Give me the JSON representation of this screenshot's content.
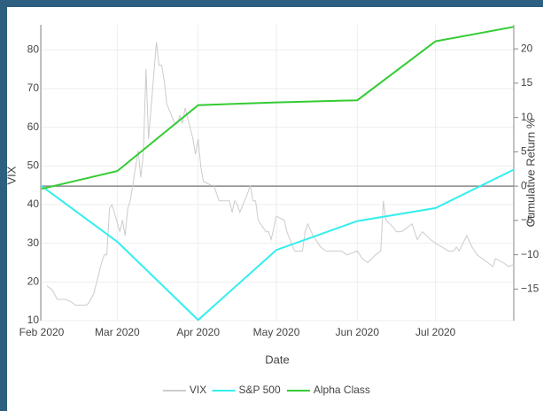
{
  "chart_data": {
    "type": "line",
    "xlabel": "Date",
    "ylabel": "VIX",
    "y2label": "Cumulative Return %",
    "xlim": [
      "2020-02-01",
      "2020-07-31"
    ],
    "xticks": [
      {
        "value": "2020-02-01",
        "label": "Feb 2020"
      },
      {
        "value": "2020-03-01",
        "label": "Mar 2020"
      },
      {
        "value": "2020-04-01",
        "label": "Apr 2020"
      },
      {
        "value": "2020-05-01",
        "label": "May 2020"
      },
      {
        "value": "2020-06-01",
        "label": "Jun 2020"
      },
      {
        "value": "2020-07-01",
        "label": "Jul 2020"
      }
    ],
    "ylim": [
      10,
      86.5
    ],
    "yticks": [
      10,
      20,
      30,
      40,
      50,
      60,
      70,
      80
    ],
    "y2lim": [
      -19.6,
      23.5
    ],
    "y2ticks": [
      {
        "value": -15,
        "label": "−15"
      },
      {
        "value": -10,
        "label": "−10"
      },
      {
        "value": -5,
        "label": "−5"
      },
      0,
      5,
      10,
      15,
      20
    ],
    "grid": true,
    "legend": "bottom",
    "series": [
      {
        "name": "VIX",
        "color": "#cccccc",
        "axis": "y",
        "x": [
          "2020-02-03",
          "2020-02-05",
          "2020-02-07",
          "2020-02-10",
          "2020-02-12",
          "2020-02-14",
          "2020-02-18",
          "2020-02-19",
          "2020-02-21",
          "2020-02-24",
          "2020-02-25",
          "2020-02-26",
          "2020-02-27",
          "2020-02-28",
          "2020-03-02",
          "2020-03-03",
          "2020-03-04",
          "2020-03-05",
          "2020-03-06",
          "2020-03-09",
          "2020-03-10",
          "2020-03-11",
          "2020-03-12",
          "2020-03-13",
          "2020-03-16",
          "2020-03-17",
          "2020-03-18",
          "2020-03-19",
          "2020-03-20",
          "2020-03-23",
          "2020-03-24",
          "2020-03-25",
          "2020-03-26",
          "2020-03-27",
          "2020-03-30",
          "2020-03-31",
          "2020-04-01",
          "2020-04-02",
          "2020-04-03",
          "2020-04-06",
          "2020-04-07",
          "2020-04-08",
          "2020-04-09",
          "2020-04-13",
          "2020-04-14",
          "2020-04-15",
          "2020-04-16",
          "2020-04-17",
          "2020-04-20",
          "2020-04-21",
          "2020-04-22",
          "2020-04-23",
          "2020-04-24",
          "2020-04-27",
          "2020-04-28",
          "2020-04-29",
          "2020-04-30",
          "2020-05-01",
          "2020-05-04",
          "2020-05-05",
          "2020-05-08",
          "2020-05-11",
          "2020-05-12",
          "2020-05-13",
          "2020-05-15",
          "2020-05-18",
          "2020-05-20",
          "2020-05-22",
          "2020-05-26",
          "2020-05-28",
          "2020-06-01",
          "2020-06-03",
          "2020-06-05",
          "2020-06-08",
          "2020-06-10",
          "2020-06-11",
          "2020-06-12",
          "2020-06-15",
          "2020-06-16",
          "2020-06-18",
          "2020-06-22",
          "2020-06-24",
          "2020-06-26",
          "2020-06-29",
          "2020-07-01",
          "2020-07-06",
          "2020-07-08",
          "2020-07-09",
          "2020-07-10",
          "2020-07-13",
          "2020-07-15",
          "2020-07-17",
          "2020-07-21",
          "2020-07-23",
          "2020-07-24",
          "2020-07-27",
          "2020-07-29",
          "2020-07-31"
        ],
        "values": [
          19,
          18,
          15.5,
          15.5,
          15,
          14,
          14,
          14.5,
          17,
          25,
          27,
          27,
          39,
          40,
          33,
          36,
          32,
          39,
          41,
          54,
          47,
          53,
          75,
          57,
          82,
          76,
          76,
          72,
          66,
          61,
          61,
          63,
          61,
          65,
          57,
          53,
          57,
          50,
          46,
          45,
          45,
          43,
          41,
          41,
          38,
          41,
          40,
          38,
          43,
          45,
          41,
          41,
          36,
          33,
          33,
          31,
          34,
          37,
          36,
          33,
          28,
          28,
          33,
          35,
          32,
          29,
          28,
          28,
          28,
          27,
          28,
          26,
          25,
          27,
          28,
          41,
          36,
          34,
          33,
          33,
          35,
          31,
          33,
          31,
          30,
          28,
          28,
          29,
          28,
          32,
          29,
          27,
          25,
          24,
          26,
          25,
          24,
          24.5
        ]
      },
      {
        "name": "S&P 500",
        "color": "#33eeee",
        "axis": "y2",
        "x": [
          "2020-02-01",
          "2020-03-01",
          "2020-04-01",
          "2020-05-01",
          "2020-06-01",
          "2020-07-01",
          "2020-07-31"
        ],
        "values": [
          0,
          -8.1,
          -19.5,
          -9.3,
          -5.1,
          -3.2,
          2.4
        ]
      },
      {
        "name": "Alpha Class",
        "color": "#33cc33",
        "axis": "y2",
        "x": [
          "2020-02-01",
          "2020-03-01",
          "2020-04-01",
          "2020-05-01",
          "2020-06-01",
          "2020-07-01",
          "2020-07-31"
        ],
        "values": [
          -0.4,
          2.2,
          11.8,
          12.2,
          12.5,
          21.1,
          23.2
        ]
      }
    ]
  }
}
